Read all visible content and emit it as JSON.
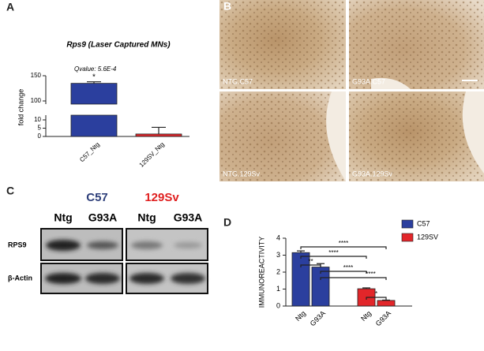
{
  "panel_labels": [
    "A",
    "B",
    "C",
    "D"
  ],
  "chart_data": [
    {
      "type": "bar",
      "title": "Rps9 (Laser Captured MNs)",
      "annotation": "Qvalue: 5.6E-4",
      "significance": "*",
      "y_label": "fold change",
      "categories": [
        "C57_Ntg",
        "129SV_Ntg"
      ],
      "values": [
        135,
        1.5
      ],
      "errors": [
        3,
        4
      ],
      "colors": [
        "#2b3f9e",
        "#d9262a"
      ],
      "ylim": [
        0,
        150
      ],
      "yticks": [
        0,
        5,
        10,
        100,
        150
      ],
      "broken_axis": true
    },
    {
      "type": "grouped_bar",
      "y_label": "IMMUNOREACTIVITY",
      "categories": [
        "Ntg",
        "G93A",
        "Ntg",
        "G93A"
      ],
      "series": [
        {
          "name": "C57",
          "color": "#2b3f9e",
          "values": [
            3.15,
            2.3,
            null,
            null
          ],
          "errors": [
            0.1,
            0.2,
            null,
            null
          ]
        },
        {
          "name": "129SV",
          "color": "#e2262a",
          "values": [
            null,
            null,
            1.02,
            0.33
          ],
          "errors": [
            null,
            null,
            0.05,
            0.02
          ]
        }
      ],
      "ylim": [
        0,
        4
      ],
      "yticks": [
        0,
        1,
        2,
        3,
        4
      ],
      "legend": "right",
      "comparisons": [
        {
          "from": 0,
          "to": 3,
          "label": "****"
        },
        {
          "from": 0,
          "to": 2,
          "label": "****"
        },
        {
          "from": 0,
          "to": 1,
          "label": "**"
        },
        {
          "from": 1,
          "to": 2,
          "label": "****"
        },
        {
          "from": 1,
          "to": 3,
          "label": "****"
        },
        {
          "from": 2,
          "to": 3,
          "label": "*"
        }
      ]
    }
  ],
  "images": {
    "labels": [
      "NTG.C57",
      "G93A.C57",
      "NTG.129Sv",
      "G93A.129Sv"
    ]
  },
  "blot": {
    "groups": [
      {
        "name": "C57",
        "color": "#2e3f7a"
      },
      {
        "name": "129Sv",
        "color": "#e02020"
      }
    ],
    "lanes": [
      "Ntg",
      "G93A",
      "Ntg",
      "G93A"
    ],
    "rows": [
      "RPS9",
      "β-Actin"
    ]
  }
}
